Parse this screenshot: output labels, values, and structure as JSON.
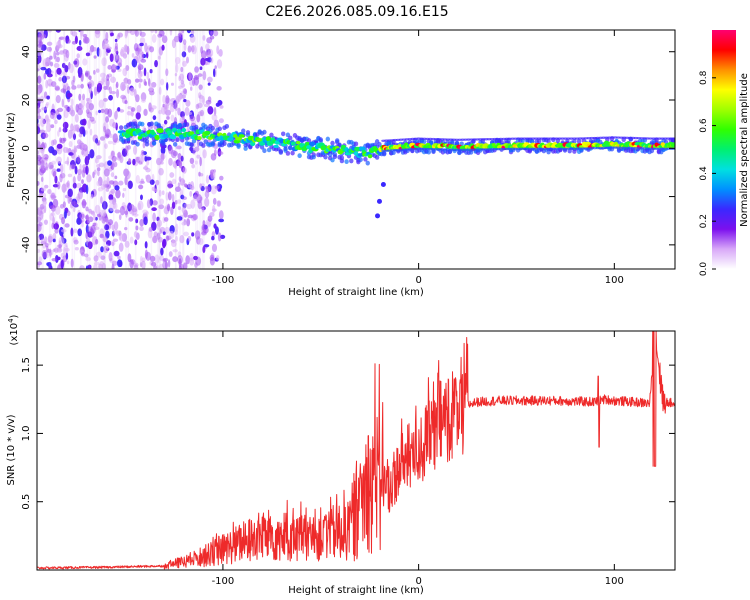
{
  "title": "C2E6.2026.085.09.16.E15",
  "chart_data": [
    {
      "type": "heatmap",
      "name": "spectrogram",
      "xlabel": "Height of straight line (km)",
      "ylabel": "Frequency (Hz)",
      "xlim": [
        -195,
        131
      ],
      "ylim": [
        -50,
        49
      ],
      "xticks": [
        "-100",
        "0",
        "100"
      ],
      "xtick_values": [
        -100,
        0,
        100
      ],
      "yticks": [
        "40",
        "20",
        "0",
        "-20",
        "-40"
      ],
      "ytick_values": [
        40,
        20,
        0,
        -20,
        -40
      ],
      "description_text": "",
      "ridge": {
        "x": [
          -150,
          -120,
          -100,
          -80,
          -60,
          -40,
          -25,
          -20,
          0,
          20,
          50,
          80,
          100,
          120,
          131
        ],
        "y": [
          6,
          6,
          5,
          3,
          1,
          -1,
          -2,
          0,
          1,
          0.5,
          1,
          1,
          1.5,
          1,
          1
        ]
      },
      "colorbar": {
        "label": "Normalized spectral amplitude",
        "ticks": [
          "0.0",
          "0.2",
          "0.4",
          "0.6",
          "0.8"
        ],
        "tick_values": [
          0,
          0.2,
          0.4,
          0.6,
          0.8
        ],
        "range": [
          0,
          1
        ],
        "colors": [
          "#ffffff",
          "#d8a8f8",
          "#7c10ee",
          "#3a28ff",
          "#0090ff",
          "#00e0e0",
          "#00f070",
          "#30ff00",
          "#a0ff00",
          "#ffff00",
          "#ff9000",
          "#ff0000",
          "#ff0070"
        ]
      }
    },
    {
      "type": "line",
      "name": "snr",
      "xlabel": "Height of straight line (km)",
      "ylabel": "SNR (10 * v/v)",
      "scale_label": "(x10",
      "scale_exp": "4",
      "scale_close": ")",
      "xlim": [
        -195,
        131
      ],
      "ylim": [
        0,
        17500
      ],
      "xticks": [
        "-100",
        "0",
        "100"
      ],
      "xtick_values": [
        -100,
        0,
        100
      ],
      "yticks": [
        "0.5",
        "1.0",
        "1.5"
      ],
      "ytick_values": [
        5000,
        10000,
        15000
      ],
      "color": "#ee2a2a",
      "series": [
        {
          "name": "SNR",
          "x": [
            -195,
            -160,
            -130,
            -120,
            -110,
            -100,
            -90,
            -80,
            -70,
            -60,
            -50,
            -40,
            -35,
            -30,
            -25,
            -20,
            -15,
            -10,
            -5,
            0,
            5,
            10,
            15,
            20,
            25,
            30,
            40,
            50,
            60,
            70,
            80,
            90,
            95,
            100,
            110,
            118,
            121,
            125,
            131
          ],
          "y": [
            150,
            200,
            300,
            600,
            1000,
            1500,
            2000,
            2500,
            2500,
            2300,
            2600,
            2800,
            3500,
            4500,
            7000,
            6500,
            6000,
            7500,
            8200,
            8800,
            9500,
            10500,
            11400,
            11800,
            12100,
            12300,
            12400,
            12400,
            12400,
            12400,
            12350,
            12300,
            12500,
            12400,
            12300,
            12200,
            17000,
            12300,
            12200
          ]
        }
      ]
    }
  ]
}
